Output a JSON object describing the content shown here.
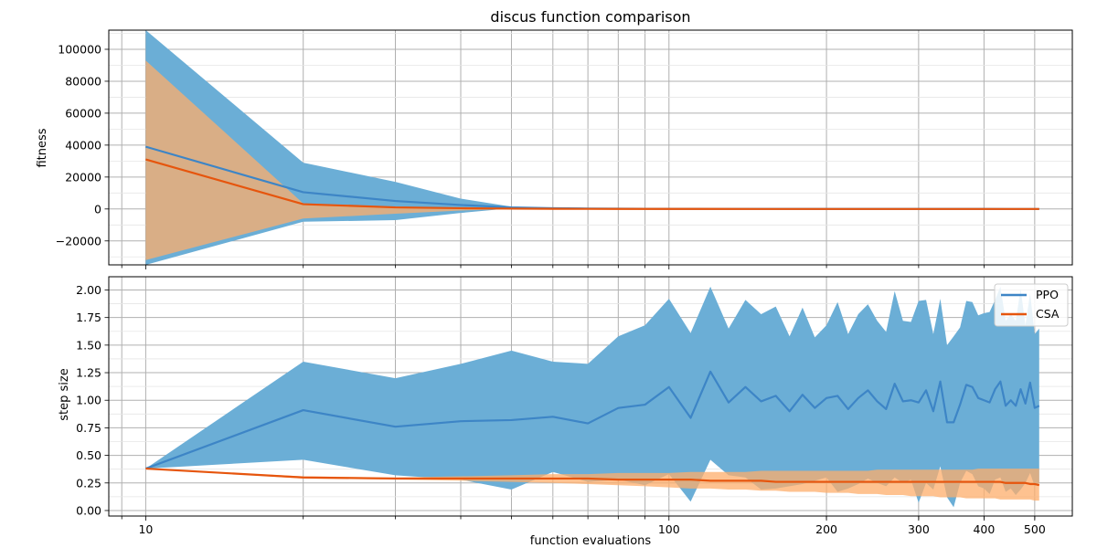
{
  "title": "discus function comparison",
  "colors": {
    "ppo": "#3d85c6",
    "ppo_band": "#6baed6",
    "csa": "#e6550d",
    "csa_band": "#fdae6b",
    "overlap": "#b5a08c"
  },
  "chart_data": [
    {
      "type": "line",
      "title": "discus function comparison",
      "ylabel": "fitness",
      "xlabel": "",
      "xscale": "log",
      "xlim": [
        8.5,
        590
      ],
      "ylim": [
        -35000,
        112000
      ],
      "yticks": [
        -20000,
        0,
        20000,
        40000,
        60000,
        80000,
        100000
      ],
      "ytick_labels": [
        "−20000",
        "0",
        "20000",
        "40000",
        "60000",
        "80000",
        "100000"
      ],
      "grid": true,
      "x": [
        10,
        20,
        30,
        40,
        50,
        60,
        70,
        80,
        90,
        100,
        120,
        150,
        200,
        250,
        300,
        350,
        400,
        450,
        500,
        510
      ],
      "series": [
        {
          "name": "PPO",
          "values": [
            39000,
            10500,
            5000,
            2500,
            1000,
            500,
            300,
            200,
            150,
            100,
            80,
            60,
            40,
            30,
            25,
            20,
            15,
            12,
            10,
            10
          ],
          "upper": [
            112000,
            29000,
            17000,
            6500,
            1500,
            800,
            500,
            350,
            250,
            200,
            150,
            120,
            100,
            80,
            60,
            50,
            40,
            30,
            25,
            25
          ],
          "lower": [
            -35000,
            -8000,
            -7000,
            -2500,
            500,
            200,
            100,
            50,
            40,
            30,
            20,
            15,
            10,
            8,
            6,
            5,
            4,
            3,
            2,
            2
          ]
        },
        {
          "name": "CSA",
          "values": [
            31000,
            3000,
            1000,
            500,
            200,
            100,
            60,
            40,
            30,
            20,
            15,
            10,
            8,
            6,
            5,
            4,
            3,
            2,
            2,
            2
          ],
          "upper": [
            93000,
            3500,
            1500,
            700,
            300,
            150,
            90,
            60,
            40,
            30,
            25,
            20,
            15,
            12,
            10,
            8,
            6,
            5,
            4,
            4
          ],
          "lower": [
            -32000,
            -6000,
            -3000,
            -1000,
            0,
            0,
            0,
            0,
            0,
            0,
            0,
            0,
            0,
            0,
            0,
            0,
            0,
            0,
            0,
            0
          ]
        }
      ]
    },
    {
      "type": "line",
      "title": "",
      "ylabel": "step size",
      "xlabel": "function evaluations",
      "xscale": "log",
      "xlim": [
        8.5,
        590
      ],
      "ylim": [
        -0.05,
        2.12
      ],
      "yticks": [
        0.0,
        0.25,
        0.5,
        0.75,
        1.0,
        1.25,
        1.5,
        1.75,
        2.0
      ],
      "ytick_labels": [
        "0.00",
        "0.25",
        "0.50",
        "0.75",
        "1.00",
        "1.25",
        "1.50",
        "1.75",
        "2.00"
      ],
      "xticks": [
        10,
        100,
        200,
        300,
        400,
        500
      ],
      "xtick_labels": [
        "10",
        "100",
        "200",
        "300",
        "400",
        "500"
      ],
      "grid": true,
      "legend_position": "top-right",
      "x": [
        10,
        20,
        30,
        40,
        50,
        60,
        70,
        80,
        90,
        100,
        110,
        120,
        130,
        140,
        150,
        160,
        170,
        180,
        190,
        200,
        210,
        220,
        230,
        240,
        250,
        260,
        270,
        280,
        290,
        300,
        310,
        320,
        330,
        340,
        350,
        360,
        370,
        380,
        390,
        400,
        410,
        420,
        430,
        440,
        450,
        460,
        470,
        480,
        490,
        500,
        510
      ],
      "series": [
        {
          "name": "PPO",
          "values": [
            0.38,
            0.91,
            0.76,
            0.81,
            0.82,
            0.85,
            0.79,
            0.93,
            0.96,
            1.12,
            0.84,
            1.26,
            0.98,
            1.12,
            0.99,
            1.04,
            0.9,
            1.05,
            0.93,
            1.02,
            1.04,
            0.92,
            1.02,
            1.09,
            0.99,
            0.92,
            1.15,
            0.99,
            1.0,
            0.98,
            1.09,
            0.9,
            1.17,
            0.8,
            0.8,
            0.96,
            1.14,
            1.12,
            1.02,
            1.0,
            0.98,
            1.1,
            1.17,
            0.95,
            1.0,
            0.95,
            1.1,
            0.97,
            1.16,
            0.93,
            0.95
          ],
          "upper": [
            0.38,
            1.35,
            1.2,
            1.33,
            1.45,
            1.35,
            1.33,
            1.58,
            1.68,
            1.92,
            1.61,
            2.03,
            1.65,
            1.91,
            1.78,
            1.85,
            1.58,
            1.84,
            1.57,
            1.68,
            1.89,
            1.6,
            1.78,
            1.87,
            1.72,
            1.62,
            1.99,
            1.72,
            1.71,
            1.9,
            1.91,
            1.6,
            1.92,
            1.5,
            1.58,
            1.66,
            1.9,
            1.89,
            1.77,
            1.79,
            1.8,
            1.91,
            2.03,
            1.72,
            1.78,
            1.72,
            2.01,
            1.68,
            1.97,
            1.6,
            1.65
          ],
          "lower": [
            0.38,
            0.46,
            0.32,
            0.28,
            0.19,
            0.35,
            0.26,
            0.28,
            0.23,
            0.33,
            0.08,
            0.46,
            0.32,
            0.3,
            0.19,
            0.2,
            0.22,
            0.24,
            0.27,
            0.3,
            0.17,
            0.2,
            0.24,
            0.29,
            0.25,
            0.22,
            0.3,
            0.25,
            0.28,
            0.07,
            0.25,
            0.19,
            0.4,
            0.12,
            0.03,
            0.25,
            0.36,
            0.33,
            0.22,
            0.2,
            0.15,
            0.28,
            0.3,
            0.17,
            0.2,
            0.14,
            0.19,
            0.25,
            0.34,
            0.22,
            0.25
          ]
        },
        {
          "name": "CSA",
          "values": [
            0.38,
            0.3,
            0.29,
            0.29,
            0.29,
            0.29,
            0.29,
            0.28,
            0.28,
            0.28,
            0.28,
            0.27,
            0.27,
            0.27,
            0.27,
            0.26,
            0.26,
            0.26,
            0.26,
            0.26,
            0.26,
            0.26,
            0.26,
            0.26,
            0.26,
            0.26,
            0.26,
            0.26,
            0.26,
            0.26,
            0.26,
            0.26,
            0.26,
            0.26,
            0.26,
            0.26,
            0.26,
            0.26,
            0.26,
            0.26,
            0.26,
            0.26,
            0.26,
            0.25,
            0.25,
            0.25,
            0.25,
            0.25,
            0.24,
            0.24,
            0.23
          ],
          "upper": [
            0.38,
            0.31,
            0.3,
            0.31,
            0.32,
            0.33,
            0.33,
            0.34,
            0.34,
            0.34,
            0.35,
            0.35,
            0.35,
            0.35,
            0.36,
            0.36,
            0.36,
            0.36,
            0.36,
            0.36,
            0.36,
            0.36,
            0.36,
            0.36,
            0.37,
            0.37,
            0.37,
            0.37,
            0.37,
            0.37,
            0.37,
            0.37,
            0.37,
            0.37,
            0.37,
            0.37,
            0.37,
            0.37,
            0.38,
            0.38,
            0.38,
            0.38,
            0.38,
            0.38,
            0.38,
            0.38,
            0.38,
            0.38,
            0.38,
            0.38,
            0.38
          ],
          "lower": [
            0.38,
            0.29,
            0.28,
            0.27,
            0.26,
            0.25,
            0.24,
            0.23,
            0.22,
            0.21,
            0.2,
            0.2,
            0.19,
            0.19,
            0.18,
            0.18,
            0.17,
            0.17,
            0.17,
            0.16,
            0.16,
            0.16,
            0.15,
            0.15,
            0.15,
            0.14,
            0.14,
            0.14,
            0.13,
            0.13,
            0.13,
            0.13,
            0.12,
            0.12,
            0.12,
            0.12,
            0.11,
            0.11,
            0.11,
            0.11,
            0.11,
            0.11,
            0.1,
            0.1,
            0.1,
            0.1,
            0.1,
            0.1,
            0.1,
            0.09,
            0.09
          ]
        }
      ]
    }
  ]
}
